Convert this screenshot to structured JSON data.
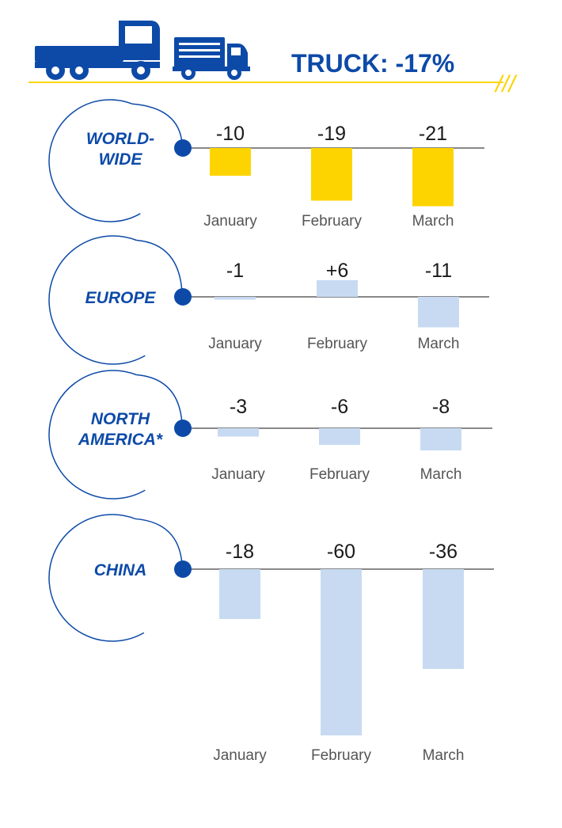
{
  "header": {
    "title": "TRUCK: -17%",
    "icons": [
      "flatbed-truck-icon",
      "box-truck-icon"
    ],
    "hatch": "///"
  },
  "colors": {
    "brand": "#0d4aa8",
    "accent": "#fdd400",
    "bar_light": "#c7daf2",
    "axis": "#888888",
    "text": "#1a1a1a",
    "muted": "#555555"
  },
  "chart_data": [
    {
      "type": "bar",
      "region": "WORLD-WIDE",
      "region_lines": [
        "WORLD-",
        "WIDE"
      ],
      "categories": [
        "January",
        "February",
        "March"
      ],
      "values": [
        -10,
        -19,
        -21
      ],
      "value_labels": [
        "-10",
        "-19",
        "-21"
      ],
      "color": "#fdd400"
    },
    {
      "type": "bar",
      "region": "EUROPE",
      "region_lines": [
        "EUROPE"
      ],
      "categories": [
        "January",
        "February",
        "March"
      ],
      "values": [
        -1,
        6,
        -11
      ],
      "value_labels": [
        "-1",
        "+6",
        "-11"
      ],
      "color": "#c7daf2"
    },
    {
      "type": "bar",
      "region": "NORTH AMERICA*",
      "region_lines": [
        "NORTH",
        "AMERICA*"
      ],
      "categories": [
        "January",
        "February",
        "March"
      ],
      "values": [
        -3,
        -6,
        -8
      ],
      "value_labels": [
        "-3",
        "-6",
        "-8"
      ],
      "color": "#c7daf2"
    },
    {
      "type": "bar",
      "region": "CHINA",
      "region_lines": [
        "CHINA"
      ],
      "categories": [
        "January",
        "February",
        "March"
      ],
      "values": [
        -18,
        -60,
        -36
      ],
      "value_labels": [
        "-18",
        "-60",
        "-36"
      ],
      "color": "#c7daf2"
    }
  ]
}
